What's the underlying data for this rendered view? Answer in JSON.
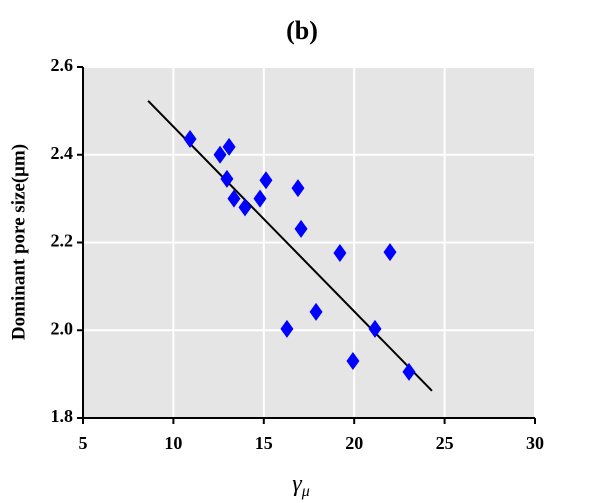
{
  "chart_data": {
    "type": "scatter",
    "title": "(b)",
    "x_label": "γ",
    "x_label_subscript": "μ",
    "y_label": "Dominant pore size(μm)",
    "x": [
      10.92,
      12.58,
      13.08,
      12.96,
      13.35,
      13.96,
      14.79,
      15.12,
      16.89,
      17.06,
      16.28,
      17.89,
      19.21,
      21.98,
      21.15,
      19.93,
      23.03
    ],
    "values": [
      2.436,
      2.4,
      2.418,
      2.345,
      2.3,
      2.28,
      2.3,
      2.342,
      2.324,
      2.231,
      2.003,
      2.042,
      2.176,
      2.178,
      2.003,
      1.93,
      1.905
    ],
    "color": "#0000ff",
    "fit_line": {
      "x": [
        8.6,
        24.3
      ],
      "y": [
        2.523,
        1.862
      ],
      "color": "#000000"
    },
    "xlim": [
      5,
      30
    ],
    "xticks": [
      5,
      10,
      15,
      20,
      25,
      30
    ],
    "ylim": [
      1.8,
      2.6
    ],
    "yticks": [
      1.8,
      {
        "value": 2,
        "label": "2.0"
      },
      2.2,
      2.4,
      2.6
    ],
    "grid": true,
    "background": "#e5e5e5"
  }
}
